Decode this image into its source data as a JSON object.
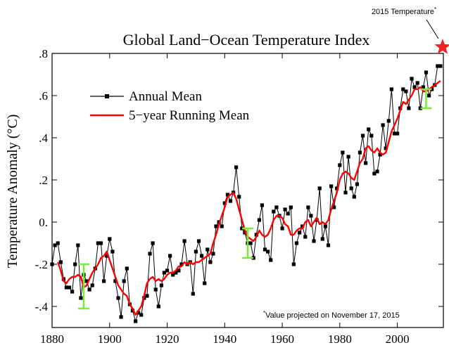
{
  "chart_data": {
    "type": "line",
    "title": "Global Land−Ocean Temperature Index",
    "ylabel": "Temperature Anomaly (°C)",
    "xlabel": "",
    "xlim": [
      1880,
      2016
    ],
    "ylim": [
      -0.5,
      0.8
    ],
    "x_ticks": [
      1880,
      1900,
      1920,
      1940,
      1960,
      1980,
      2000
    ],
    "x_tick_labels": [
      "1880",
      "1900",
      "1920",
      "1940",
      "1960",
      "1980",
      "2000"
    ],
    "y_ticks": [
      -0.4,
      -0.2,
      0.0,
      0.2,
      0.4,
      0.6,
      0.8
    ],
    "y_tick_labels": [
      "-.4",
      "-.2",
      "0.",
      ".2",
      ".4",
      ".6",
      ".8"
    ],
    "legend": {
      "placement": "top-left",
      "entries": [
        "Annual Mean",
        "5−year Running Mean"
      ]
    },
    "colors": {
      "annual": "#000000",
      "running": "#ff0000",
      "uncertainty": "#77ee33",
      "star": "#ee2222"
    },
    "x": [
      1880,
      1881,
      1882,
      1883,
      1884,
      1885,
      1886,
      1887,
      1888,
      1889,
      1890,
      1891,
      1892,
      1893,
      1894,
      1895,
      1896,
      1897,
      1898,
      1899,
      1900,
      1901,
      1902,
      1903,
      1904,
      1905,
      1906,
      1907,
      1908,
      1909,
      1910,
      1911,
      1912,
      1913,
      1914,
      1915,
      1916,
      1917,
      1918,
      1919,
      1920,
      1921,
      1922,
      1923,
      1924,
      1925,
      1926,
      1927,
      1928,
      1929,
      1930,
      1931,
      1932,
      1933,
      1934,
      1935,
      1936,
      1937,
      1938,
      1939,
      1940,
      1941,
      1942,
      1943,
      1944,
      1945,
      1946,
      1947,
      1948,
      1949,
      1950,
      1951,
      1952,
      1953,
      1954,
      1955,
      1956,
      1957,
      1958,
      1959,
      1960,
      1961,
      1962,
      1963,
      1964,
      1965,
      1966,
      1967,
      1968,
      1969,
      1970,
      1971,
      1972,
      1973,
      1974,
      1975,
      1976,
      1977,
      1978,
      1979,
      1980,
      1981,
      1982,
      1983,
      1984,
      1985,
      1986,
      1987,
      1988,
      1989,
      1990,
      1991,
      1992,
      1993,
      1994,
      1995,
      1996,
      1997,
      1998,
      1999,
      2000,
      2001,
      2002,
      2003,
      2004,
      2005,
      2006,
      2007,
      2008,
      2009,
      2010,
      2011,
      2012,
      2013,
      2014,
      2015
    ],
    "series": [
      {
        "name": "Annual Mean",
        "values": [
          -0.2,
          -0.11,
          -0.1,
          -0.19,
          -0.27,
          -0.31,
          -0.31,
          -0.33,
          -0.2,
          -0.11,
          -0.36,
          -0.25,
          -0.28,
          -0.32,
          -0.3,
          -0.22,
          -0.1,
          -0.1,
          -0.28,
          -0.16,
          -0.08,
          -0.14,
          -0.28,
          -0.36,
          -0.45,
          -0.28,
          -0.22,
          -0.39,
          -0.42,
          -0.47,
          -0.43,
          -0.44,
          -0.36,
          -0.35,
          -0.15,
          -0.1,
          -0.32,
          -0.4,
          -0.3,
          -0.24,
          -0.23,
          -0.16,
          -0.25,
          -0.24,
          -0.23,
          -0.2,
          -0.09,
          -0.2,
          -0.19,
          -0.34,
          -0.14,
          -0.09,
          -0.16,
          -0.29,
          -0.13,
          -0.19,
          -0.15,
          -0.02,
          -0.0,
          -0.02,
          0.09,
          0.13,
          0.1,
          0.14,
          0.26,
          0.12,
          -0.03,
          -0.05,
          -0.1,
          -0.1,
          -0.17,
          -0.06,
          0.01,
          0.08,
          -0.13,
          -0.14,
          -0.18,
          0.05,
          0.07,
          0.03,
          -0.03,
          0.06,
          0.04,
          0.07,
          -0.2,
          -0.1,
          -0.05,
          -0.02,
          -0.07,
          0.07,
          0.03,
          -0.09,
          0.01,
          0.16,
          -0.08,
          -0.02,
          -0.11,
          0.17,
          0.07,
          0.16,
          0.27,
          0.33,
          0.14,
          0.31,
          0.16,
          0.12,
          0.18,
          0.33,
          0.41,
          0.28,
          0.44,
          0.41,
          0.23,
          0.24,
          0.32,
          0.46,
          0.35,
          0.48,
          0.63,
          0.42,
          0.42,
          0.54,
          0.63,
          0.62,
          0.54,
          0.68,
          0.64,
          0.66,
          0.54,
          0.64,
          0.71,
          0.6,
          0.63,
          0.65,
          0.74,
          0.74
        ]
      },
      {
        "name": "5−year Running Mean",
        "values": [
          null,
          null,
          -0.19,
          -0.23,
          -0.28,
          -0.29,
          -0.27,
          -0.26,
          -0.26,
          -0.25,
          -0.26,
          -0.31,
          -0.3,
          -0.27,
          -0.24,
          -0.22,
          -0.2,
          -0.17,
          -0.16,
          -0.14,
          -0.18,
          -0.22,
          -0.26,
          -0.3,
          -0.32,
          -0.34,
          -0.35,
          -0.39,
          -0.41,
          -0.44,
          -0.42,
          -0.4,
          -0.35,
          -0.29,
          -0.27,
          -0.26,
          -0.28,
          -0.27,
          -0.28,
          -0.27,
          -0.25,
          -0.24,
          -0.24,
          -0.23,
          -0.21,
          -0.21,
          -0.19,
          -0.2,
          -0.19,
          -0.2,
          -0.19,
          -0.19,
          -0.18,
          -0.17,
          -0.16,
          -0.15,
          -0.1,
          -0.06,
          -0.01,
          0.03,
          0.07,
          0.12,
          0.13,
          0.14,
          0.11,
          0.06,
          0.01,
          -0.04,
          -0.07,
          -0.08,
          -0.09,
          -0.07,
          -0.04,
          -0.06,
          -0.07,
          -0.06,
          -0.03,
          0.01,
          0.03,
          0.03,
          0.02,
          -0.01,
          -0.02,
          -0.06,
          -0.06,
          -0.04,
          -0.03,
          -0.03,
          0.0,
          0.01,
          -0.02,
          0.0,
          0.02,
          -0.01,
          0.0,
          -0.01,
          0.01,
          0.06,
          0.1,
          0.14,
          0.2,
          0.23,
          0.24,
          0.23,
          0.21,
          0.2,
          0.24,
          0.28,
          0.3,
          0.35,
          0.36,
          0.34,
          0.33,
          0.35,
          0.33,
          0.32,
          0.33,
          0.38,
          0.43,
          0.46,
          0.49,
          0.53,
          0.57,
          0.56,
          0.58,
          0.6,
          0.63,
          0.63,
          0.64,
          0.62,
          0.62,
          0.63,
          0.64,
          0.65,
          0.66,
          0.67
        ]
      }
    ],
    "uncertainty_bars": [
      {
        "x": 1891,
        "low": -0.41,
        "high": -0.2
      },
      {
        "x": 1948,
        "low": -0.17,
        "high": -0.03
      },
      {
        "x": 2010,
        "low": 0.54,
        "high": 0.63
      }
    ],
    "highlight": {
      "x": 2015,
      "y": 0.83,
      "label": "2015 Temperature",
      "label_sup": "*"
    },
    "footnote": {
      "mark": "*",
      "text": "Value projected on November 17, 2015"
    }
  }
}
